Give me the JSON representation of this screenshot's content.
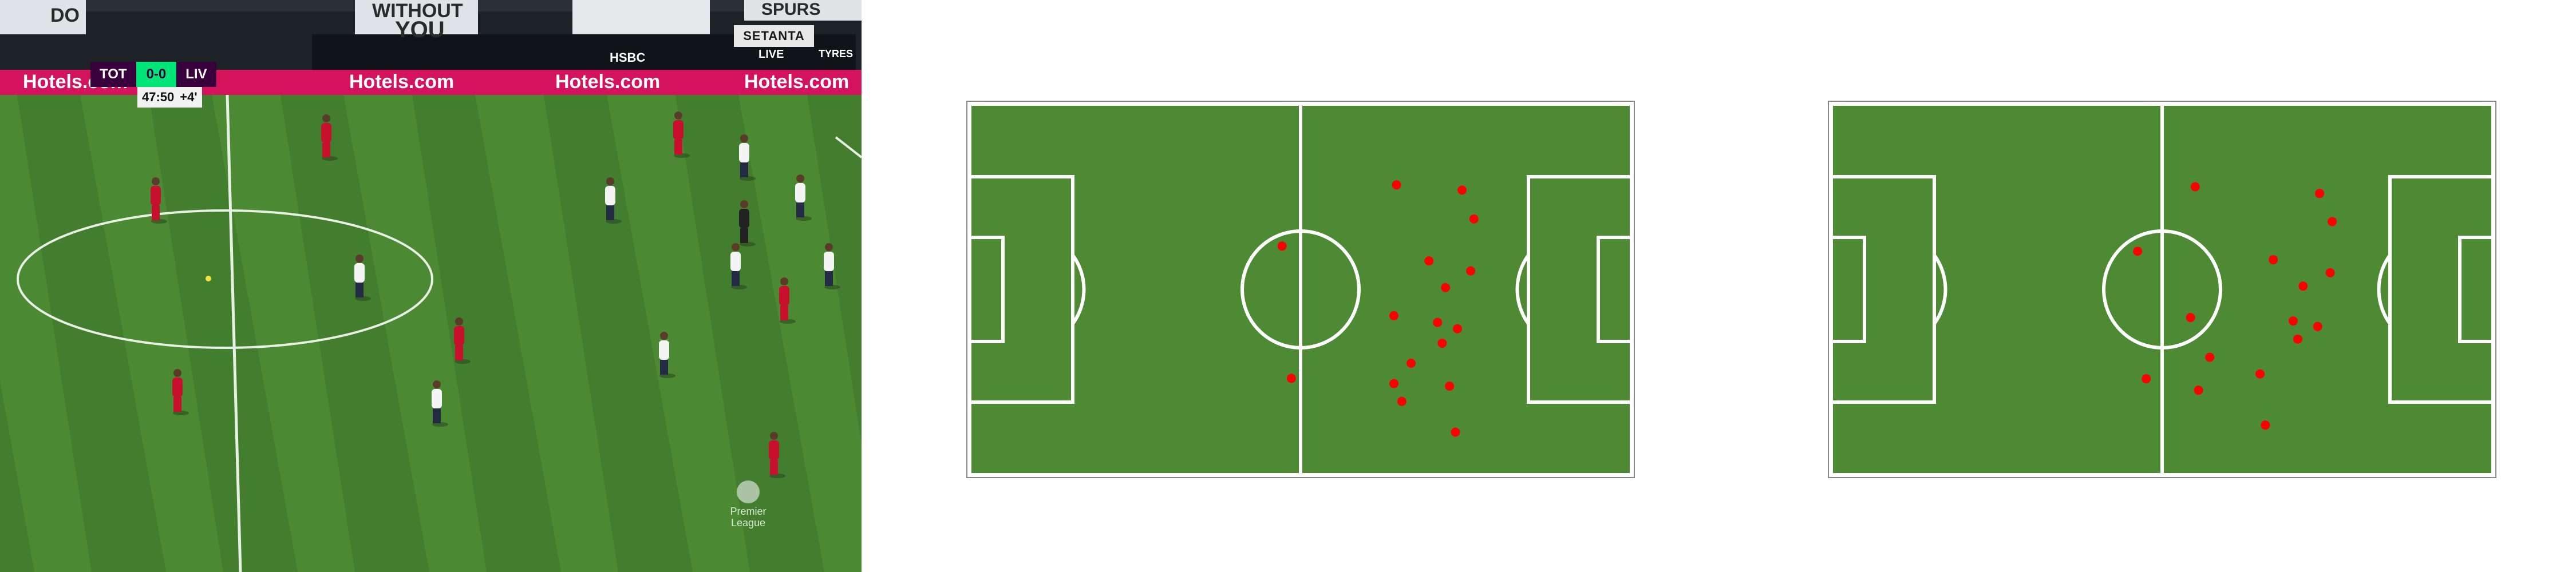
{
  "broadcast": {
    "home_team": "TOT",
    "score": "0-0",
    "away_team": "LIV",
    "clock": "47:50",
    "added_time": "+4'",
    "sponsor_board": "Hotels.com",
    "hsbc_board": "HSBC",
    "setanta_label": "SETANTA",
    "live_label": "LIVE",
    "stand_text_1": "WITHOUT",
    "stand_text_2": "YOU",
    "stand_text_3": "SPURS",
    "stand_text_4": "DO",
    "stand_text_5": "TYRES",
    "league_logo_line1": "Premier",
    "league_logo_line2": "League",
    "colors": {
      "grass_light": "#4b8a33",
      "grass_dark": "#3d7528",
      "liverpool_kit": "#c8102e",
      "tottenham_kit": "#f4f4f4",
      "premier_league_purple": "#38003c",
      "score_green": "#00e676"
    }
  },
  "pitch_maps": {
    "colors": {
      "pitch": "#4e8a33",
      "lines": "#ffffff",
      "player_dot": "#ff0000"
    },
    "left_map": {
      "players": [
        {
          "x": 64.5,
          "y": 21.8
        },
        {
          "x": 47.2,
          "y": 38.3
        },
        {
          "x": 74.4,
          "y": 23.2
        },
        {
          "x": 76.2,
          "y": 31.0
        },
        {
          "x": 69.4,
          "y": 42.3
        },
        {
          "x": 75.7,
          "y": 45.0
        },
        {
          "x": 71.9,
          "y": 49.5
        },
        {
          "x": 64.1,
          "y": 57.1
        },
        {
          "x": 70.7,
          "y": 58.9
        },
        {
          "x": 73.7,
          "y": 60.6
        },
        {
          "x": 71.4,
          "y": 64.5
        },
        {
          "x": 66.7,
          "y": 69.9
        },
        {
          "x": 64.1,
          "y": 75.4
        },
        {
          "x": 48.6,
          "y": 74.0
        },
        {
          "x": 72.5,
          "y": 76.1
        },
        {
          "x": 65.3,
          "y": 80.2
        },
        {
          "x": 73.4,
          "y": 88.5
        }
      ]
    },
    "right_map": {
      "players": [
        {
          "x": 55.0,
          "y": 22.3
        },
        {
          "x": 46.3,
          "y": 39.7
        },
        {
          "x": 73.8,
          "y": 24.1
        },
        {
          "x": 75.7,
          "y": 31.7
        },
        {
          "x": 66.8,
          "y": 42.0
        },
        {
          "x": 75.4,
          "y": 45.5
        },
        {
          "x": 71.3,
          "y": 49.1
        },
        {
          "x": 54.3,
          "y": 57.6
        },
        {
          "x": 69.8,
          "y": 58.5
        },
        {
          "x": 73.5,
          "y": 60.0
        },
        {
          "x": 70.5,
          "y": 63.4
        },
        {
          "x": 57.2,
          "y": 68.3
        },
        {
          "x": 64.8,
          "y": 72.8
        },
        {
          "x": 47.6,
          "y": 74.1
        },
        {
          "x": 55.5,
          "y": 77.2
        },
        {
          "x": 65.6,
          "y": 86.6
        }
      ]
    }
  }
}
